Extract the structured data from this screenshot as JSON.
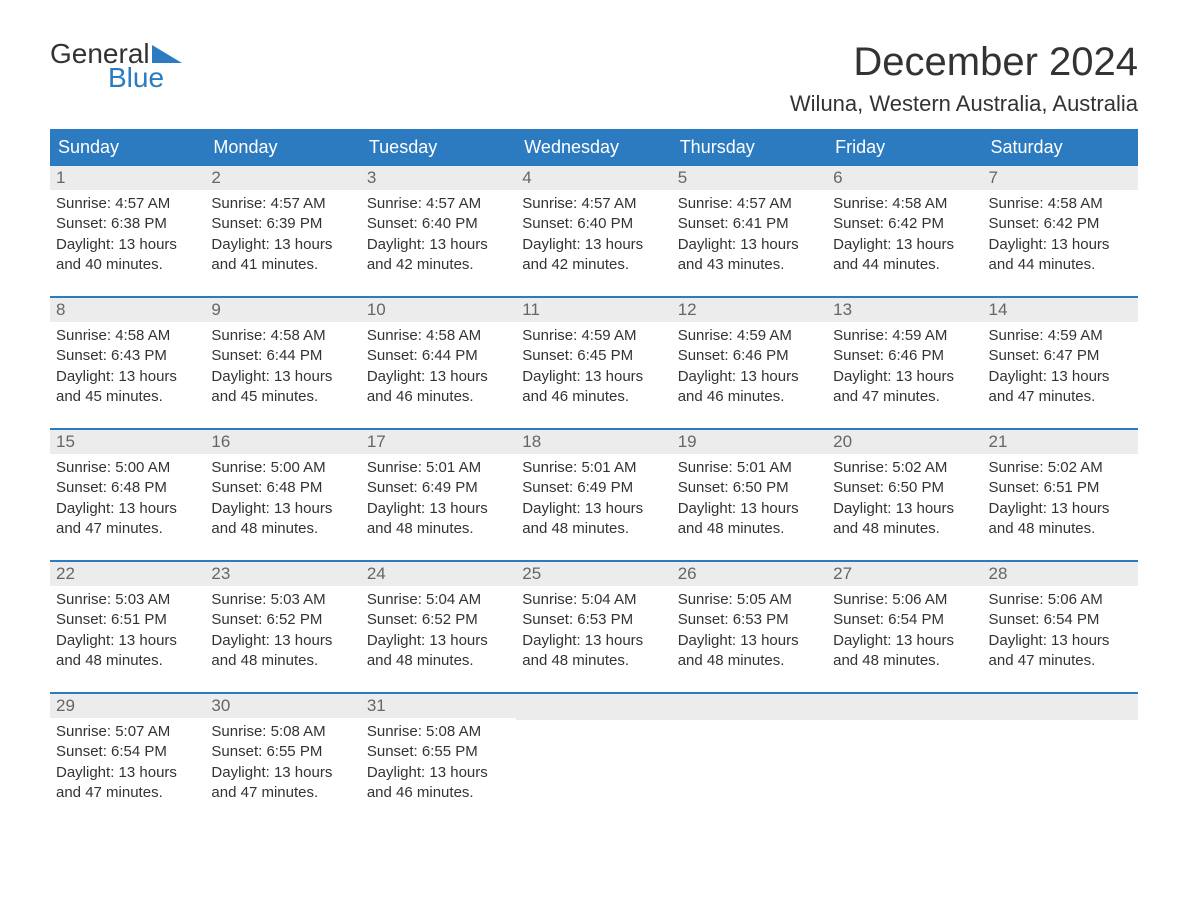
{
  "logo": {
    "line1": "General",
    "line2": "Blue",
    "triangle_color": "#2c7bc0"
  },
  "title": "December 2024",
  "location": "Wiluna, Western Australia, Australia",
  "colors": {
    "header_bg": "#2c7bc0",
    "header_text": "#ffffff",
    "day_number_bg": "#ececec",
    "day_number_text": "#666666",
    "body_text": "#333333",
    "row_border": "#2c7bc0",
    "background": "#ffffff"
  },
  "day_headers": [
    "Sunday",
    "Monday",
    "Tuesday",
    "Wednesday",
    "Thursday",
    "Friday",
    "Saturday"
  ],
  "weeks": [
    [
      {
        "day": "1",
        "sunrise": "Sunrise: 4:57 AM",
        "sunset": "Sunset: 6:38 PM",
        "daylight": "Daylight: 13 hours and 40 minutes."
      },
      {
        "day": "2",
        "sunrise": "Sunrise: 4:57 AM",
        "sunset": "Sunset: 6:39 PM",
        "daylight": "Daylight: 13 hours and 41 minutes."
      },
      {
        "day": "3",
        "sunrise": "Sunrise: 4:57 AM",
        "sunset": "Sunset: 6:40 PM",
        "daylight": "Daylight: 13 hours and 42 minutes."
      },
      {
        "day": "4",
        "sunrise": "Sunrise: 4:57 AM",
        "sunset": "Sunset: 6:40 PM",
        "daylight": "Daylight: 13 hours and 42 minutes."
      },
      {
        "day": "5",
        "sunrise": "Sunrise: 4:57 AM",
        "sunset": "Sunset: 6:41 PM",
        "daylight": "Daylight: 13 hours and 43 minutes."
      },
      {
        "day": "6",
        "sunrise": "Sunrise: 4:58 AM",
        "sunset": "Sunset: 6:42 PM",
        "daylight": "Daylight: 13 hours and 44 minutes."
      },
      {
        "day": "7",
        "sunrise": "Sunrise: 4:58 AM",
        "sunset": "Sunset: 6:42 PM",
        "daylight": "Daylight: 13 hours and 44 minutes."
      }
    ],
    [
      {
        "day": "8",
        "sunrise": "Sunrise: 4:58 AM",
        "sunset": "Sunset: 6:43 PM",
        "daylight": "Daylight: 13 hours and 45 minutes."
      },
      {
        "day": "9",
        "sunrise": "Sunrise: 4:58 AM",
        "sunset": "Sunset: 6:44 PM",
        "daylight": "Daylight: 13 hours and 45 minutes."
      },
      {
        "day": "10",
        "sunrise": "Sunrise: 4:58 AM",
        "sunset": "Sunset: 6:44 PM",
        "daylight": "Daylight: 13 hours and 46 minutes."
      },
      {
        "day": "11",
        "sunrise": "Sunrise: 4:59 AM",
        "sunset": "Sunset: 6:45 PM",
        "daylight": "Daylight: 13 hours and 46 minutes."
      },
      {
        "day": "12",
        "sunrise": "Sunrise: 4:59 AM",
        "sunset": "Sunset: 6:46 PM",
        "daylight": "Daylight: 13 hours and 46 minutes."
      },
      {
        "day": "13",
        "sunrise": "Sunrise: 4:59 AM",
        "sunset": "Sunset: 6:46 PM",
        "daylight": "Daylight: 13 hours and 47 minutes."
      },
      {
        "day": "14",
        "sunrise": "Sunrise: 4:59 AM",
        "sunset": "Sunset: 6:47 PM",
        "daylight": "Daylight: 13 hours and 47 minutes."
      }
    ],
    [
      {
        "day": "15",
        "sunrise": "Sunrise: 5:00 AM",
        "sunset": "Sunset: 6:48 PM",
        "daylight": "Daylight: 13 hours and 47 minutes."
      },
      {
        "day": "16",
        "sunrise": "Sunrise: 5:00 AM",
        "sunset": "Sunset: 6:48 PM",
        "daylight": "Daylight: 13 hours and 48 minutes."
      },
      {
        "day": "17",
        "sunrise": "Sunrise: 5:01 AM",
        "sunset": "Sunset: 6:49 PM",
        "daylight": "Daylight: 13 hours and 48 minutes."
      },
      {
        "day": "18",
        "sunrise": "Sunrise: 5:01 AM",
        "sunset": "Sunset: 6:49 PM",
        "daylight": "Daylight: 13 hours and 48 minutes."
      },
      {
        "day": "19",
        "sunrise": "Sunrise: 5:01 AM",
        "sunset": "Sunset: 6:50 PM",
        "daylight": "Daylight: 13 hours and 48 minutes."
      },
      {
        "day": "20",
        "sunrise": "Sunrise: 5:02 AM",
        "sunset": "Sunset: 6:50 PM",
        "daylight": "Daylight: 13 hours and 48 minutes."
      },
      {
        "day": "21",
        "sunrise": "Sunrise: 5:02 AM",
        "sunset": "Sunset: 6:51 PM",
        "daylight": "Daylight: 13 hours and 48 minutes."
      }
    ],
    [
      {
        "day": "22",
        "sunrise": "Sunrise: 5:03 AM",
        "sunset": "Sunset: 6:51 PM",
        "daylight": "Daylight: 13 hours and 48 minutes."
      },
      {
        "day": "23",
        "sunrise": "Sunrise: 5:03 AM",
        "sunset": "Sunset: 6:52 PM",
        "daylight": "Daylight: 13 hours and 48 minutes."
      },
      {
        "day": "24",
        "sunrise": "Sunrise: 5:04 AM",
        "sunset": "Sunset: 6:52 PM",
        "daylight": "Daylight: 13 hours and 48 minutes."
      },
      {
        "day": "25",
        "sunrise": "Sunrise: 5:04 AM",
        "sunset": "Sunset: 6:53 PM",
        "daylight": "Daylight: 13 hours and 48 minutes."
      },
      {
        "day": "26",
        "sunrise": "Sunrise: 5:05 AM",
        "sunset": "Sunset: 6:53 PM",
        "daylight": "Daylight: 13 hours and 48 minutes."
      },
      {
        "day": "27",
        "sunrise": "Sunrise: 5:06 AM",
        "sunset": "Sunset: 6:54 PM",
        "daylight": "Daylight: 13 hours and 48 minutes."
      },
      {
        "day": "28",
        "sunrise": "Sunrise: 5:06 AM",
        "sunset": "Sunset: 6:54 PM",
        "daylight": "Daylight: 13 hours and 47 minutes."
      }
    ],
    [
      {
        "day": "29",
        "sunrise": "Sunrise: 5:07 AM",
        "sunset": "Sunset: 6:54 PM",
        "daylight": "Daylight: 13 hours and 47 minutes."
      },
      {
        "day": "30",
        "sunrise": "Sunrise: 5:08 AM",
        "sunset": "Sunset: 6:55 PM",
        "daylight": "Daylight: 13 hours and 47 minutes."
      },
      {
        "day": "31",
        "sunrise": "Sunrise: 5:08 AM",
        "sunset": "Sunset: 6:55 PM",
        "daylight": "Daylight: 13 hours and 46 minutes."
      },
      {
        "day": "",
        "sunrise": "",
        "sunset": "",
        "daylight": "",
        "empty": true
      },
      {
        "day": "",
        "sunrise": "",
        "sunset": "",
        "daylight": "",
        "empty": true
      },
      {
        "day": "",
        "sunrise": "",
        "sunset": "",
        "daylight": "",
        "empty": true
      },
      {
        "day": "",
        "sunrise": "",
        "sunset": "",
        "daylight": "",
        "empty": true
      }
    ]
  ]
}
